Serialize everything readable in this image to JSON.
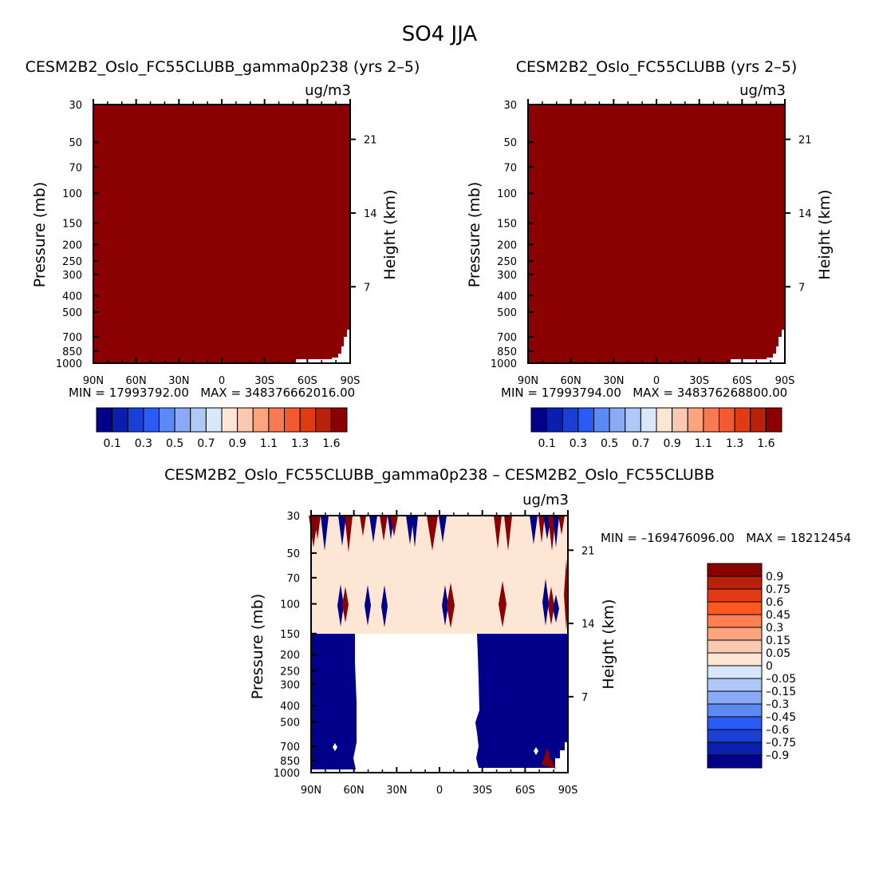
{
  "figure_title": "SO4 JJA",
  "colors": {
    "plot_fill": "#8b0000",
    "diff_background": "#fde6d4",
    "diff_negative": "#00008b",
    "diff_positive": "#8b0000",
    "blank": "#ffffff"
  },
  "chart_data": [
    {
      "id": "left",
      "type": "heatmap",
      "title": "CESM2B2_Oslo_FC55CLUBB_gamma0p238 (yrs 2–5)",
      "units": "ug/m3",
      "ylabel": "Pressure (mb)",
      "ylabel_right": "Height (km)",
      "x_ticks": [
        "90N",
        "60N",
        "30N",
        "0",
        "30S",
        "60S",
        "90S"
      ],
      "y_ticks": [
        "30",
        "50",
        "70",
        "100",
        "150",
        "200",
        "250",
        "300",
        "400",
        "500",
        "700",
        "850",
        "1000"
      ],
      "y_right_ticks": [
        "21",
        "14",
        "7"
      ],
      "stats": "MIN = 17993792.00   MAX = 348376662016.00",
      "colorbar_labels": [
        "0.1",
        "0.3",
        "0.5",
        "0.7",
        "0.9",
        "1.1",
        "1.3",
        "1.6"
      ]
    },
    {
      "id": "right",
      "type": "heatmap",
      "title": "CESM2B2_Oslo_FC55CLUBB (yrs 2–5)",
      "units": "ug/m3",
      "ylabel": "Pressure (mb)",
      "ylabel_right": "Height (km)",
      "x_ticks": [
        "90N",
        "60N",
        "30N",
        "0",
        "30S",
        "60S",
        "90S"
      ],
      "y_ticks": [
        "30",
        "50",
        "70",
        "100",
        "150",
        "200",
        "250",
        "300",
        "400",
        "500",
        "700",
        "850",
        "1000"
      ],
      "y_right_ticks": [
        "21",
        "14",
        "7"
      ],
      "stats": "MIN = 17993794.00   MAX = 348376268800.00",
      "colorbar_labels": [
        "0.1",
        "0.3",
        "0.5",
        "0.7",
        "0.9",
        "1.1",
        "1.3",
        "1.6"
      ]
    },
    {
      "id": "diff",
      "type": "heatmap",
      "title": "CESM2B2_Oslo_FC55CLUBB_gamma0p238 – CESM2B2_Oslo_FC55CLUBB",
      "units": "ug/m3",
      "ylabel": "Pressure (mb)",
      "ylabel_right": "Height (km)",
      "x_ticks": [
        "90N",
        "60N",
        "30N",
        "0",
        "30S",
        "60S",
        "90S"
      ],
      "y_ticks": [
        "30",
        "50",
        "70",
        "100",
        "150",
        "200",
        "250",
        "300",
        "400",
        "500",
        "700",
        "850",
        "1000"
      ],
      "y_right_ticks": [
        "21",
        "14",
        "7"
      ],
      "stats": "MIN = –169476096.00   MAX = 18212454",
      "colorbar_labels": [
        "0.9",
        "0.75",
        "0.6",
        "0.45",
        "0.3",
        "0.15",
        "0.05",
        "0",
        "–0.05",
        "–0.15",
        "–0.3",
        "–0.45",
        "–0.6",
        "–0.75",
        "–0.9"
      ]
    }
  ]
}
